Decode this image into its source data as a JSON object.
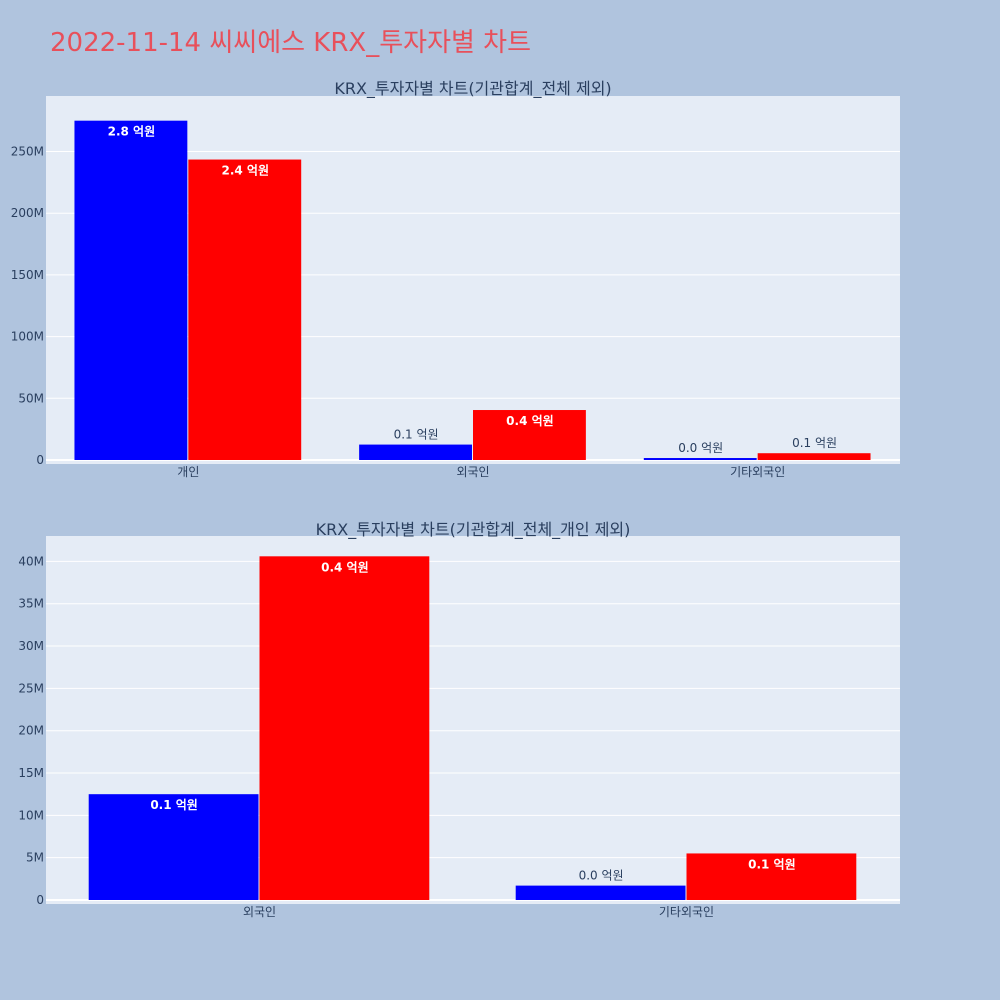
{
  "page_title": "2022-11-14 씨씨에스 KRX_투자자별 차트",
  "colors": {
    "buy": "#0000ff",
    "sell": "#ff0000",
    "plot_bg": "#e5ecf6",
    "page_bg": "#b0c4de",
    "title": "#e8505b"
  },
  "chart_data": [
    {
      "type": "bar",
      "title": "KRX_투자자별 차트(기관합계_전체 제외)",
      "categories": [
        "개인",
        "외국인",
        "기타외국인"
      ],
      "series": [
        {
          "values": [
            275000000,
            12500000,
            1600000
          ],
          "labels": [
            "2.8 억원",
            "0.1 억원",
            "0.0 억원"
          ],
          "color": "#0000ff"
        },
        {
          "values": [
            243500000,
            40500000,
            5500000
          ],
          "labels": [
            "2.4 억원",
            "0.4 억원",
            "0.1 억원"
          ],
          "color": "#ff0000"
        }
      ],
      "ylim": [
        0,
        295000000
      ],
      "yticks": [
        0,
        50000000,
        100000000,
        150000000,
        200000000,
        250000000
      ],
      "ytick_labels": [
        "0",
        "50M",
        "100M",
        "150M",
        "200M",
        "250M"
      ],
      "grid": true
    },
    {
      "type": "bar",
      "title": "KRX_투자자별 차트(기관합계_전체_개인 제외)",
      "categories": [
        "외국인",
        "기타외국인"
      ],
      "series": [
        {
          "values": [
            12500000,
            1700000
          ],
          "labels": [
            "0.1 억원",
            "0.0 억원"
          ],
          "color": "#0000ff"
        },
        {
          "values": [
            40600000,
            5500000
          ],
          "labels": [
            "0.4 억원",
            "0.1 억원"
          ],
          "color": "#ff0000"
        }
      ],
      "ylim": [
        0,
        43000000
      ],
      "yticks": [
        0,
        5000000,
        10000000,
        15000000,
        20000000,
        25000000,
        30000000,
        35000000,
        40000000
      ],
      "ytick_labels": [
        "0",
        "5M",
        "10M",
        "15M",
        "20M",
        "25M",
        "30M",
        "35M",
        "40M"
      ],
      "grid": true
    }
  ]
}
